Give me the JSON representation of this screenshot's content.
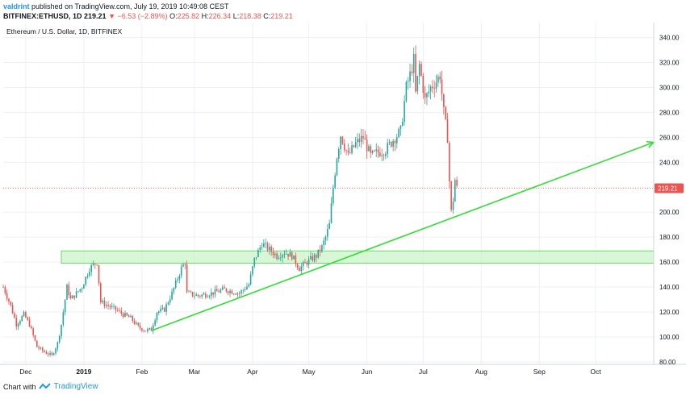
{
  "header": {
    "author": "valdrint",
    "published": "published on TradingView.com, July 19, 2019 10:49:08 CEST",
    "symbol": "BITFINEX:ETHUSD, 1D",
    "last": "219.21",
    "change": "−6.53 (−2.89%)",
    "o_label": "O:",
    "o": "225.82",
    "h_label": "H:",
    "h": "226.34",
    "l_label": "L:",
    "l": "218.38",
    "c_label": "C:",
    "c": "219.21"
  },
  "footer": {
    "prefix": "Chart with",
    "brand": "TradingView"
  },
  "colors": {
    "up": "#26a69a",
    "down": "#ef5350",
    "trendline": "#33dd33",
    "zone_fill": "#c8f5c8",
    "zone_stroke": "#55cc55",
    "price_line": "#ef5350",
    "grid": "#eef0f3",
    "axis": "#787b86"
  },
  "chart_data": {
    "type": "candlestick",
    "title": "Ethereum / U.S. Dollar, 1D, BITFINEX",
    "xlabel": "",
    "ylabel": "",
    "ylim": [
      78,
      352
    ],
    "y_ticks": [
      "80.00",
      "100.00",
      "120.00",
      "140.00",
      "160.00",
      "180.00",
      "200.00",
      "220.00",
      "240.00",
      "260.00",
      "280.00",
      "300.00",
      "320.00",
      "340.00"
    ],
    "x_ticks": [
      {
        "label": "Dec",
        "date": "2018-12-01"
      },
      {
        "label": "2019",
        "date": "2019-01-01"
      },
      {
        "label": "Feb",
        "date": "2019-02-01"
      },
      {
        "label": "Mar",
        "date": "2019-03-01"
      },
      {
        "label": "Apr",
        "date": "2019-04-01"
      },
      {
        "label": "May",
        "date": "2019-05-01"
      },
      {
        "label": "Jun",
        "date": "2019-06-01"
      },
      {
        "label": "Jul",
        "date": "2019-07-01"
      },
      {
        "label": "Aug",
        "date": "2019-08-01"
      },
      {
        "label": "Sep",
        "date": "2019-09-01"
      },
      {
        "label": "Oct",
        "date": "2019-10-01"
      }
    ],
    "xlim": [
      "2018-11-19",
      "2019-11-01"
    ],
    "current_price": "219.21",
    "current_price_value": 219.21,
    "support_zone": {
      "start": "2018-12-20",
      "end": "2019-11-01",
      "low": 159,
      "high": 169
    },
    "trendline": {
      "start": {
        "date": "2019-02-06",
        "price": 105
      },
      "end": {
        "date": "2019-11-01",
        "price": 256
      }
    },
    "close_path": [
      [
        "2018-11-19",
        140
      ],
      [
        "2018-11-23",
        125
      ],
      [
        "2018-11-26",
        110
      ],
      [
        "2018-11-30",
        118
      ],
      [
        "2018-12-03",
        110
      ],
      [
        "2018-12-07",
        92
      ],
      [
        "2018-12-11",
        88
      ],
      [
        "2018-12-15",
        85
      ],
      [
        "2018-12-18",
        95
      ],
      [
        "2018-12-20",
        110
      ],
      [
        "2018-12-23",
        140
      ],
      [
        "2018-12-25",
        130
      ],
      [
        "2018-12-28",
        135
      ],
      [
        "2018-12-31",
        140
      ],
      [
        "2019-01-04",
        155
      ],
      [
        "2019-01-08",
        160
      ],
      [
        "2019-01-10",
        128
      ],
      [
        "2019-01-14",
        125
      ],
      [
        "2019-01-18",
        122
      ],
      [
        "2019-01-22",
        118
      ],
      [
        "2019-01-26",
        115
      ],
      [
        "2019-01-30",
        108
      ],
      [
        "2019-02-03",
        105
      ],
      [
        "2019-02-06",
        106
      ],
      [
        "2019-02-09",
        120
      ],
      [
        "2019-02-13",
        122
      ],
      [
        "2019-02-17",
        135
      ],
      [
        "2019-02-22",
        155
      ],
      [
        "2019-02-24",
        160
      ],
      [
        "2019-02-25",
        135
      ],
      [
        "2019-03-03",
        133
      ],
      [
        "2019-03-10",
        135
      ],
      [
        "2019-03-17",
        138
      ],
      [
        "2019-03-25",
        135
      ],
      [
        "2019-03-30",
        142
      ],
      [
        "2019-04-02",
        162
      ],
      [
        "2019-04-06",
        175
      ],
      [
        "2019-04-10",
        170
      ],
      [
        "2019-04-14",
        165
      ],
      [
        "2019-04-18",
        168
      ],
      [
        "2019-04-22",
        165
      ],
      [
        "2019-04-26",
        155
      ],
      [
        "2019-04-30",
        160
      ],
      [
        "2019-05-05",
        165
      ],
      [
        "2019-05-08",
        172
      ],
      [
        "2019-05-10",
        180
      ],
      [
        "2019-05-12",
        190
      ],
      [
        "2019-05-14",
        220
      ],
      [
        "2019-05-16",
        245
      ],
      [
        "2019-05-18",
        262
      ],
      [
        "2019-05-22",
        245
      ],
      [
        "2019-05-26",
        255
      ],
      [
        "2019-05-30",
        260
      ],
      [
        "2019-06-03",
        245
      ],
      [
        "2019-06-07",
        248
      ],
      [
        "2019-06-11",
        250
      ],
      [
        "2019-06-15",
        258
      ],
      [
        "2019-06-19",
        265
      ],
      [
        "2019-06-22",
        300
      ],
      [
        "2019-06-24",
        310
      ],
      [
        "2019-06-26",
        322
      ],
      [
        "2019-06-27",
        295
      ],
      [
        "2019-06-29",
        318
      ],
      [
        "2019-07-02",
        290
      ],
      [
        "2019-07-05",
        300
      ],
      [
        "2019-07-08",
        305
      ],
      [
        "2019-07-10",
        310
      ],
      [
        "2019-07-12",
        280
      ],
      [
        "2019-07-14",
        260
      ],
      [
        "2019-07-15",
        225
      ],
      [
        "2019-07-16",
        200
      ],
      [
        "2019-07-17",
        210
      ],
      [
        "2019-07-18",
        226
      ],
      [
        "2019-07-19",
        219
      ]
    ]
  }
}
